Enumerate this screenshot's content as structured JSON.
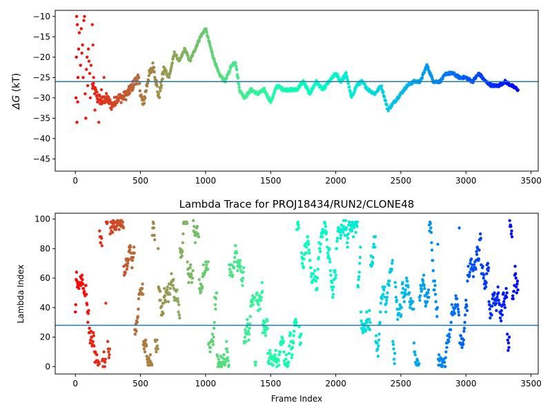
{
  "chart_data": [
    {
      "type": "scatter",
      "title": "",
      "xlabel": "",
      "ylabel_symbol": "ΔG",
      "ylabel_unit": " (kT)",
      "xlim": [
        -155,
        3555
      ],
      "ylim": [
        -48,
        -8.5
      ],
      "xticks": [
        0,
        500,
        1000,
        1500,
        2000,
        2500,
        3000,
        3500
      ],
      "yticks": [
        -45,
        -40,
        -35,
        -30,
        -25,
        -20,
        -15,
        -10
      ],
      "hline": -26,
      "line_color": "#1f77b4",
      "colormap": "rainbow_reversed",
      "grid": false,
      "legend": "none",
      "n_frames": 3400,
      "trace_keypoints": {
        "x": [
          130,
          160,
          200,
          240,
          280,
          320,
          360,
          400,
          440,
          480,
          520,
          560,
          600,
          640,
          680,
          720,
          760,
          800,
          840,
          880,
          920,
          960,
          1000,
          1050,
          1100,
          1150,
          1200,
          1230,
          1260,
          1300,
          1350,
          1400,
          1450,
          1500,
          1550,
          1600,
          1650,
          1700,
          1750,
          1800,
          1850,
          1900,
          1950,
          2000,
          2040,
          2080,
          2120,
          2160,
          2200,
          2250,
          2300,
          2350,
          2400,
          2450,
          2500,
          2550,
          2600,
          2650,
          2700,
          2750,
          2800,
          2850,
          2900,
          2950,
          3000,
          3050,
          3100,
          3150,
          3200,
          3250,
          3300,
          3350,
          3400
        ],
        "y": [
          -27,
          -29,
          -31,
          -30,
          -32,
          -30,
          -30,
          -29,
          -27,
          -25,
          -32,
          -25,
          -22,
          -30,
          -23,
          -25,
          -19,
          -21,
          -18,
          -21,
          -18,
          -15,
          -13,
          -19,
          -24,
          -26,
          -22,
          -21,
          -28,
          -30,
          -28,
          -29,
          -28,
          -31,
          -27,
          -28,
          -28,
          -28,
          -26,
          -29,
          -26,
          -28,
          -26,
          -24,
          -26,
          -24,
          -30,
          -27,
          -26,
          -28,
          -29,
          -27,
          -33,
          -31,
          -29,
          -27,
          -26,
          -26,
          -22,
          -26,
          -26,
          -24,
          -24,
          -25,
          -25,
          -26,
          -24,
          -26,
          -27,
          -27,
          -26,
          -27,
          -28
        ]
      },
      "early_scatter": [
        [
          5,
          -30
        ],
        [
          8,
          -20
        ],
        [
          10,
          -10
        ],
        [
          12,
          -36
        ],
        [
          15,
          -12
        ],
        [
          18,
          -31
        ],
        [
          20,
          -25
        ],
        [
          25,
          -18
        ],
        [
          30,
          -14
        ],
        [
          40,
          -22
        ],
        [
          45,
          -13
        ],
        [
          50,
          -19
        ],
        [
          55,
          -17
        ],
        [
          60,
          -25
        ],
        [
          65,
          -11
        ],
        [
          70,
          -10
        ],
        [
          75,
          -29
        ],
        [
          80,
          -35
        ],
        [
          85,
          -23
        ],
        [
          90,
          -20
        ],
        [
          95,
          -27
        ],
        [
          100,
          -18
        ],
        [
          105,
          -21
        ],
        [
          110,
          -24
        ],
        [
          115,
          -30
        ],
        [
          120,
          -22
        ],
        [
          130,
          -12
        ],
        [
          135,
          -17
        ],
        [
          140,
          -25
        ],
        [
          150,
          -33
        ],
        [
          170,
          -31
        ],
        [
          180,
          -36
        ],
        [
          200,
          -28
        ],
        [
          220,
          -25
        ],
        [
          230,
          -30
        ]
      ]
    },
    {
      "type": "scatter",
      "title": "Lambda Trace for PROJ18434/RUN2/CLONE48",
      "xlabel": "Frame Index",
      "ylabel": "Lambda Index",
      "xlim": [
        -155,
        3555
      ],
      "ylim": [
        -5,
        104
      ],
      "xticks": [
        0,
        500,
        1000,
        1500,
        2000,
        2500,
        3000,
        3500
      ],
      "yticks": [
        0,
        20,
        40,
        60,
        80,
        100
      ],
      "hline": 28,
      "line_color": "#1f77b4",
      "colormap": "rainbow_reversed",
      "grid": false,
      "legend": "none",
      "n_frames": 3400,
      "value_range": [
        0,
        99
      ]
    }
  ]
}
